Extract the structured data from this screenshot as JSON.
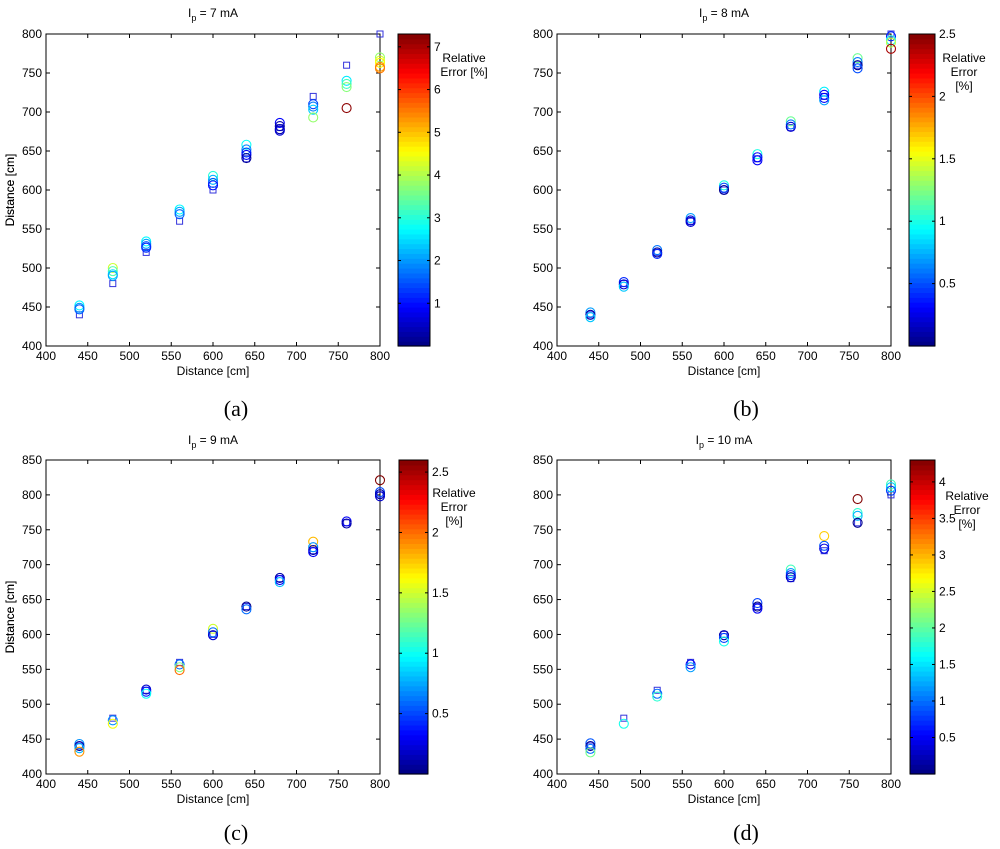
{
  "chart_data": [
    {
      "type": "scatter",
      "panel_label": "(a)",
      "title": {
        "prefix": "I",
        "subscript": "p",
        "suffix": " = 7 mA"
      },
      "xlabel": "Distance [cm]",
      "ylabel": "Distance [cm]",
      "xlim": [
        400,
        800
      ],
      "ylim": [
        400,
        800
      ],
      "x_ticks": [
        400,
        450,
        500,
        550,
        600,
        650,
        700,
        750,
        800
      ],
      "y_ticks": [
        400,
        450,
        500,
        550,
        600,
        650,
        700,
        750,
        800
      ],
      "colorbar": {
        "label": [
          "Relative",
          "Error [%]"
        ],
        "range": [
          0,
          7.3
        ],
        "ticks": [
          1,
          2,
          3,
          4,
          5,
          6,
          7
        ]
      },
      "reference_series": {
        "marker": "square",
        "color": "#3333dd",
        "x": [
          440,
          480,
          520,
          560,
          600,
          640,
          680,
          720,
          760,
          800
        ],
        "y": [
          440,
          480,
          520,
          560,
          600,
          640,
          680,
          720,
          760,
          800
        ]
      },
      "measurements": {
        "marker": "circle",
        "points": [
          [
            440,
            452,
            2.7
          ],
          [
            440,
            449,
            2.0
          ],
          [
            440,
            447,
            1.6
          ],
          [
            480,
            500,
            4.2
          ],
          [
            480,
            496,
            3.3
          ],
          [
            480,
            492,
            2.5
          ],
          [
            480,
            490,
            2.1
          ],
          [
            520,
            534,
            2.7
          ],
          [
            520,
            531,
            2.1
          ],
          [
            520,
            528,
            1.5
          ],
          [
            520,
            526,
            1.2
          ],
          [
            560,
            575,
            2.7
          ],
          [
            560,
            572,
            2.1
          ],
          [
            560,
            569,
            1.6
          ],
          [
            600,
            618,
            3.0
          ],
          [
            600,
            613,
            2.2
          ],
          [
            600,
            609,
            1.5
          ],
          [
            600,
            606,
            1.0
          ],
          [
            640,
            658,
            2.8
          ],
          [
            640,
            652,
            1.9
          ],
          [
            640,
            648,
            1.3
          ],
          [
            640,
            645,
            0.8
          ],
          [
            640,
            641,
            0.2
          ],
          [
            680,
            686,
            0.9
          ],
          [
            680,
            682,
            0.3
          ],
          [
            680,
            678,
            0.3
          ],
          [
            680,
            676,
            0.6
          ],
          [
            720,
            710,
            1.4
          ],
          [
            720,
            707,
            1.8
          ],
          [
            720,
            703,
            2.4
          ],
          [
            720,
            693,
            3.8
          ],
          [
            760,
            740,
            2.6
          ],
          [
            760,
            736,
            3.2
          ],
          [
            760,
            732,
            3.7
          ],
          [
            760,
            705,
            7.2
          ],
          [
            800,
            770,
            3.8
          ],
          [
            800,
            766,
            4.3
          ],
          [
            800,
            763,
            4.6
          ],
          [
            800,
            758,
            5.3
          ],
          [
            800,
            756,
            5.5
          ]
        ]
      }
    },
    {
      "type": "scatter",
      "panel_label": "(b)",
      "title": {
        "prefix": "I",
        "subscript": "p",
        "suffix": " = 8 mA"
      },
      "xlabel": "Distance [cm]",
      "ylabel": "Distance [cm]",
      "xlim": [
        400,
        800
      ],
      "ylim": [
        400,
        800
      ],
      "x_ticks": [
        400,
        450,
        500,
        550,
        600,
        650,
        700,
        750,
        800
      ],
      "y_ticks": [
        400,
        450,
        500,
        550,
        600,
        650,
        700,
        750,
        800
      ],
      "colorbar": {
        "label": [
          "Relative",
          "Error",
          "[%]"
        ],
        "range": [
          0,
          2.5
        ],
        "ticks": [
          0.5,
          1,
          1.5,
          2,
          2.5
        ]
      },
      "reference_series": {
        "marker": "square",
        "color": "#3333dd",
        "x": [
          440,
          480,
          520,
          560,
          600,
          640,
          680,
          720,
          760,
          800
        ],
        "y": [
          440,
          480,
          520,
          560,
          600,
          640,
          680,
          720,
          760,
          800
        ]
      },
      "measurements": {
        "marker": "circle",
        "points": [
          [
            440,
            443,
            0.7
          ],
          [
            440,
            440,
            0.1
          ],
          [
            440,
            437,
            0.8
          ],
          [
            480,
            482,
            0.4
          ],
          [
            480,
            479,
            0.2
          ],
          [
            480,
            476,
            0.8
          ],
          [
            520,
            523,
            0.6
          ],
          [
            520,
            520,
            0.05
          ],
          [
            520,
            518,
            0.4
          ],
          [
            560,
            564,
            0.7
          ],
          [
            560,
            561,
            0.2
          ],
          [
            560,
            559,
            0.2
          ],
          [
            600,
            606,
            1.0
          ],
          [
            600,
            603,
            0.5
          ],
          [
            600,
            600,
            0.05
          ],
          [
            640,
            646,
            1.0
          ],
          [
            640,
            642,
            0.3
          ],
          [
            640,
            638,
            0.3
          ],
          [
            680,
            688,
            1.2
          ],
          [
            680,
            684,
            0.6
          ],
          [
            680,
            681,
            0.2
          ],
          [
            720,
            726,
            0.9
          ],
          [
            720,
            722,
            0.3
          ],
          [
            720,
            718,
            0.3
          ],
          [
            720,
            715,
            0.7
          ],
          [
            760,
            769,
            1.2
          ],
          [
            760,
            764,
            0.6
          ],
          [
            760,
            760,
            0.05
          ],
          [
            760,
            756,
            0.5
          ],
          [
            800,
            797,
            0.4
          ],
          [
            800,
            792,
            1.0
          ],
          [
            800,
            789,
            1.4
          ],
          [
            800,
            781,
            2.4
          ]
        ]
      }
    },
    {
      "type": "scatter",
      "panel_label": "(c)",
      "title": {
        "prefix": "I",
        "subscript": "p",
        "suffix": " = 9 mA"
      },
      "xlabel": "Distance [cm]",
      "ylabel": "Distance [cm]",
      "xlim": [
        400,
        800
      ],
      "ylim": [
        400,
        850
      ],
      "x_ticks": [
        400,
        450,
        500,
        550,
        600,
        650,
        700,
        750,
        800
      ],
      "y_ticks": [
        400,
        450,
        500,
        550,
        600,
        650,
        700,
        750,
        800,
        850
      ],
      "colorbar": {
        "label": [
          "Relative",
          "Error",
          "[%]"
        ],
        "range": [
          0,
          2.6
        ],
        "ticks": [
          0.5,
          1,
          1.5,
          2,
          2.5
        ]
      },
      "reference_series": {
        "marker": "square",
        "color": "#3333dd",
        "x": [
          440,
          480,
          520,
          560,
          600,
          640,
          680,
          720,
          760,
          800
        ],
        "y": [
          440,
          480,
          520,
          560,
          600,
          640,
          680,
          720,
          760,
          800
        ]
      },
      "measurements": {
        "marker": "circle",
        "points": [
          [
            440,
            443,
            0.7
          ],
          [
            440,
            440,
            0.1
          ],
          [
            440,
            437,
            0.8
          ],
          [
            440,
            432,
            1.9
          ],
          [
            480,
            477,
            0.7
          ],
          [
            480,
            472,
            1.6
          ],
          [
            520,
            521,
            0.2
          ],
          [
            520,
            518,
            0.4
          ],
          [
            520,
            515,
            1.0
          ],
          [
            560,
            557,
            0.6
          ],
          [
            560,
            553,
            1.3
          ],
          [
            560,
            549,
            2.0
          ],
          [
            600,
            608,
            1.5
          ],
          [
            600,
            603,
            0.6
          ],
          [
            600,
            599,
            0.2
          ],
          [
            640,
            640,
            0.05
          ],
          [
            640,
            636,
            0.6
          ],
          [
            680,
            681,
            0.1
          ],
          [
            680,
            678,
            0.3
          ],
          [
            680,
            675,
            0.8
          ],
          [
            720,
            733,
            1.8
          ],
          [
            720,
            725,
            0.7
          ],
          [
            720,
            721,
            0.1
          ],
          [
            720,
            718,
            0.3
          ],
          [
            760,
            762,
            0.3
          ],
          [
            760,
            759,
            0.1
          ],
          [
            800,
            821,
            2.6
          ],
          [
            800,
            804,
            0.5
          ],
          [
            800,
            801,
            0.1
          ],
          [
            800,
            798,
            0.2
          ]
        ]
      }
    },
    {
      "type": "scatter",
      "panel_label": "(d)",
      "title": {
        "prefix": "I",
        "subscript": "p",
        "suffix": " = 10 mA"
      },
      "xlabel": "Distance [cm]",
      "ylabel": "Distance [cm]",
      "xlim": [
        400,
        800
      ],
      "ylim": [
        400,
        850
      ],
      "x_ticks": [
        400,
        450,
        500,
        550,
        600,
        650,
        700,
        750,
        800
      ],
      "y_ticks": [
        400,
        450,
        500,
        550,
        600,
        650,
        700,
        750,
        800,
        850
      ],
      "colorbar": {
        "label": [
          "Relative",
          "Error",
          "[%]"
        ],
        "range": [
          0,
          4.3
        ],
        "ticks": [
          0.5,
          1,
          1.5,
          2,
          2.5,
          3,
          3.5,
          4
        ]
      },
      "reference_series": {
        "marker": "square",
        "color": "#3333dd",
        "x": [
          440,
          480,
          520,
          560,
          600,
          640,
          680,
          720,
          760,
          800
        ],
        "y": [
          440,
          480,
          520,
          560,
          600,
          640,
          680,
          720,
          760,
          800
        ]
      },
      "measurements": {
        "marker": "circle",
        "points": [
          [
            440,
            444,
            0.9
          ],
          [
            440,
            440,
            0.1
          ],
          [
            440,
            436,
            1.0
          ],
          [
            440,
            431,
            2.1
          ],
          [
            480,
            472,
            1.7
          ],
          [
            520,
            515,
            1.0
          ],
          [
            520,
            511,
            1.8
          ],
          [
            560,
            557,
            0.5
          ],
          [
            560,
            553,
            1.2
          ],
          [
            600,
            599,
            0.2
          ],
          [
            600,
            595,
            0.8
          ],
          [
            600,
            590,
            1.7
          ],
          [
            640,
            645,
            0.8
          ],
          [
            640,
            640,
            0.05
          ],
          [
            640,
            637,
            0.5
          ],
          [
            680,
            693,
            1.9
          ],
          [
            680,
            688,
            1.2
          ],
          [
            680,
            685,
            0.7
          ],
          [
            680,
            682,
            0.3
          ],
          [
            720,
            741,
            2.9
          ],
          [
            720,
            727,
            0.9
          ],
          [
            720,
            723,
            0.4
          ],
          [
            760,
            794,
            4.3
          ],
          [
            760,
            774,
            1.8
          ],
          [
            760,
            770,
            1.3
          ],
          [
            760,
            760,
            0.05
          ],
          [
            800,
            815,
            1.9
          ],
          [
            800,
            811,
            1.4
          ],
          [
            800,
            806,
            0.8
          ]
        ]
      }
    }
  ]
}
